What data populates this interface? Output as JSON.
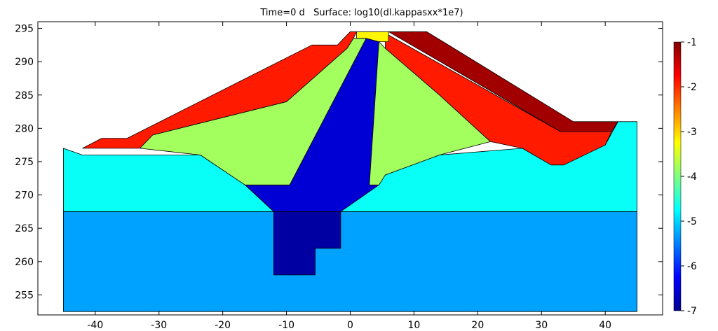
{
  "chart_data": {
    "type": "heatmap",
    "title": "Time=0 d   Surface: log10(dl.kappasxx*1e7)",
    "xlabel": "",
    "ylabel": "",
    "xlim": [
      -49,
      49
    ],
    "ylim": [
      252,
      296
    ],
    "x_ticks": [
      -40,
      -30,
      -20,
      -10,
      0,
      10,
      20,
      30,
      40
    ],
    "y_ticks": [
      255,
      260,
      265,
      270,
      275,
      280,
      285,
      290,
      295
    ],
    "colorbar": {
      "range": [
        -7,
        -1
      ],
      "ticks": [
        -1,
        -2,
        -3,
        -4,
        -5,
        -6,
        -7
      ],
      "colormap": "jet"
    },
    "regions": [
      {
        "name": "foundation",
        "value": -5.3,
        "polygon": [
          [
            -45,
            252.5
          ],
          [
            45,
            252.5
          ],
          [
            45,
            267.5
          ],
          [
            -45,
            267.5
          ]
        ]
      },
      {
        "name": "foundation-low-permeability-zone",
        "value": -6.8,
        "polygon": [
          [
            -12,
            267.5
          ],
          [
            -1.5,
            267.5
          ],
          [
            -1.5,
            262
          ],
          [
            -5.5,
            262
          ],
          [
            -5.5,
            258
          ],
          [
            -12,
            258
          ]
        ]
      },
      {
        "name": "embankment-base-layer",
        "value": -4.7,
        "polygon": [
          [
            -45,
            267.5
          ],
          [
            45,
            267.5
          ],
          [
            45,
            281
          ],
          [
            42,
            281
          ],
          [
            40,
            277.5
          ],
          [
            33.5,
            274.5
          ],
          [
            31.5,
            274.5
          ],
          [
            27,
            277
          ],
          [
            14,
            276
          ],
          [
            5.5,
            273
          ],
          [
            4.5,
            271.5
          ],
          [
            2.5,
            271.5
          ],
          [
            -1.5,
            267.5
          ],
          [
            -12,
            267.5
          ],
          [
            -16.5,
            271.5
          ],
          [
            -23.5,
            276
          ],
          [
            -42,
            276
          ],
          [
            -45,
            277
          ]
        ]
      },
      {
        "name": "central-core",
        "value": -6.5,
        "polygon": [
          [
            -16.5,
            271.5
          ],
          [
            -9.5,
            271.5
          ],
          [
            2.5,
            293.5
          ],
          [
            4.5,
            293
          ],
          [
            3,
            271.5
          ],
          [
            4.5,
            271.5
          ],
          [
            -1.5,
            267.5
          ],
          [
            -12,
            267.5
          ]
        ]
      },
      {
        "name": "filter-transition",
        "value": -3.8,
        "polygon": [
          [
            -23.5,
            276
          ],
          [
            -33,
            277
          ],
          [
            -31,
            279
          ],
          [
            -10,
            284
          ],
          [
            -0.5,
            292
          ],
          [
            0.5,
            293.5
          ],
          [
            2.5,
            293.5
          ],
          [
            -9.5,
            271.5
          ],
          [
            -16.5,
            271.5
          ]
        ]
      },
      {
        "name": "filter-transition-downstream",
        "value": -3.8,
        "polygon": [
          [
            4.5,
            293
          ],
          [
            5.5,
            292
          ],
          [
            14,
            285
          ],
          [
            22,
            278
          ],
          [
            14,
            276
          ],
          [
            5.5,
            273
          ],
          [
            4.5,
            271.5
          ],
          [
            3,
            271.5
          ]
        ]
      },
      {
        "name": "upstream-shell",
        "value": -1.9,
        "polygon": [
          [
            -42,
            277
          ],
          [
            -39,
            278.5
          ],
          [
            -35,
            278.5
          ],
          [
            -6,
            292.5
          ],
          [
            -2,
            292.5
          ],
          [
            0,
            294.5
          ],
          [
            1,
            294.5
          ],
          [
            0.5,
            293.5
          ],
          [
            -0.5,
            292
          ],
          [
            -10,
            284
          ],
          [
            -31,
            279
          ],
          [
            -33,
            277
          ]
        ]
      },
      {
        "name": "downstream-shell",
        "value": -1.9,
        "polygon": [
          [
            5.5,
            293
          ],
          [
            6,
            294
          ],
          [
            33,
            279.5
          ],
          [
            41,
            279.5
          ],
          [
            40,
            277.5
          ],
          [
            33.5,
            274.5
          ],
          [
            31.5,
            274.5
          ],
          [
            27,
            277
          ],
          [
            22,
            278
          ],
          [
            14,
            285
          ],
          [
            5.5,
            292
          ]
        ]
      },
      {
        "name": "crest-cap",
        "value": -3.2,
        "polygon": [
          [
            1,
            294.5
          ],
          [
            6,
            294.5
          ],
          [
            6,
            293
          ],
          [
            4.5,
            293
          ],
          [
            2.5,
            293.5
          ],
          [
            1,
            293.5
          ]
        ]
      },
      {
        "name": "downstream-riprap",
        "value": -1.2,
        "polygon": [
          [
            6,
            294.5
          ],
          [
            12,
            294.5
          ],
          [
            35,
            281
          ],
          [
            42,
            281
          ],
          [
            41,
            279.5
          ],
          [
            33,
            279.5
          ]
        ]
      }
    ]
  }
}
